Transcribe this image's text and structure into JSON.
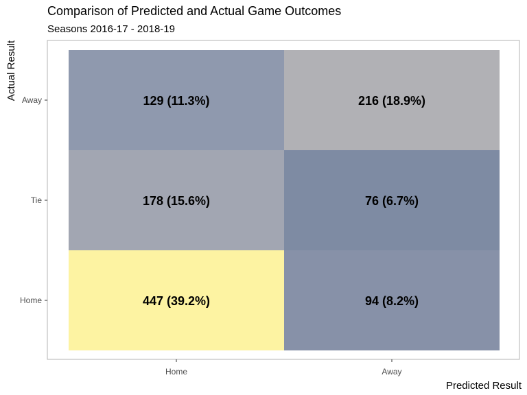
{
  "chart_data": {
    "type": "heatmap",
    "title": "Comparison of Predicted and Actual Game Outcomes",
    "subtitle": "Seasons 2016-17 - 2018-19",
    "xlabel": "Predicted Result",
    "ylabel": "Actual Result",
    "x_categories": [
      "Home",
      "Away"
    ],
    "y_categories": [
      "Home",
      "Tie",
      "Away"
    ],
    "cells": [
      {
        "predicted": "Home",
        "actual": "Away",
        "count": 129,
        "percent": 11.3,
        "label": "129 (11.3%)",
        "color": "#8f99ae"
      },
      {
        "predicted": "Away",
        "actual": "Away",
        "count": 216,
        "percent": 18.9,
        "label": "216 (18.9%)",
        "color": "#b1b1b5"
      },
      {
        "predicted": "Home",
        "actual": "Tie",
        "count": 178,
        "percent": 15.6,
        "label": "178 (15.6%)",
        "color": "#a2a6b2"
      },
      {
        "predicted": "Away",
        "actual": "Tie",
        "count": 76,
        "percent": 6.7,
        "label": "76 (6.7%)",
        "color": "#7e8ba3"
      },
      {
        "predicted": "Home",
        "actual": "Home",
        "count": 447,
        "percent": 39.2,
        "label": "447 (39.2%)",
        "color": "#fdf3a2"
      },
      {
        "predicted": "Away",
        "actual": "Home",
        "count": 94,
        "percent": 8.2,
        "label": "94 (8.2%)",
        "color": "#8791a8"
      }
    ],
    "grid": false,
    "legend": "none",
    "colors": {
      "panel_border": "#b3b3b3",
      "tick_label": "#4d4d4d",
      "tick_mark": "#333333"
    }
  }
}
